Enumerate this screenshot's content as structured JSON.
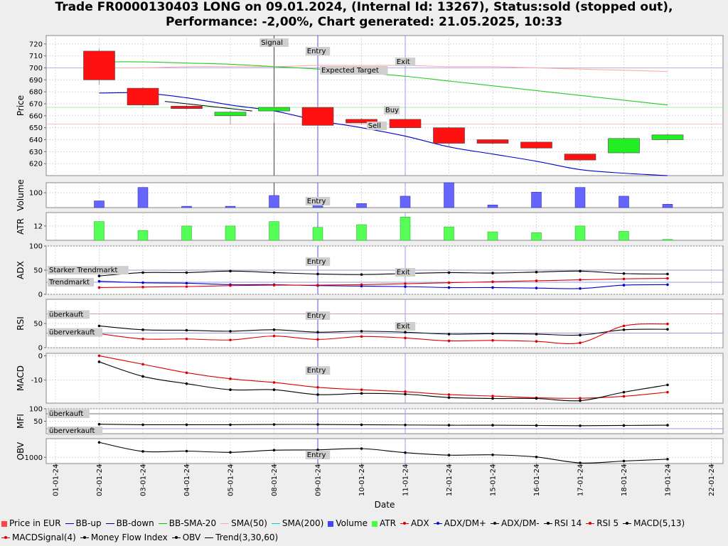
{
  "title": {
    "line1": "Trade FR0000130403 LONG on 09.01.2024, (Internal Id: 13267), Status:sold (stopped out),",
    "line2": "Performance: -2,00%, Chart generated: 21.05.2025, 10:33"
  },
  "chart_data": {
    "type": "candlestick",
    "xlabel": "Date",
    "dates": [
      "01-01-24",
      "02-01-24",
      "03-01-24",
      "04-01-24",
      "05-01-24",
      "08-01-24",
      "09-01-24",
      "10-01-24",
      "11-01-24",
      "12-01-24",
      "15-01-24",
      "16-01-24",
      "17-01-24",
      "18-01-24",
      "19-01-24",
      "22-01-24"
    ],
    "markers": {
      "signal": {
        "label": "Signal",
        "date_index": 5
      },
      "entry": {
        "label": "Entry",
        "date_index": 6
      },
      "exit": {
        "label": "Exit",
        "date_index": 8
      },
      "expected_target": {
        "label": "Expected Target",
        "value": 700
      },
      "buy": {
        "label": "Buy",
        "value": 667
      },
      "sell": {
        "label": "Sell",
        "value": 653
      }
    },
    "panels": {
      "price": {
        "ylabel": "Price",
        "ylim": [
          610,
          727
        ],
        "ticks": [
          620,
          630,
          640,
          650,
          660,
          670,
          680,
          690,
          700,
          710,
          720
        ],
        "candles": [
          {
            "i": 1,
            "open": 714,
            "close": 690,
            "high": 716,
            "low": 686
          },
          {
            "i": 2,
            "open": 683,
            "close": 669,
            "high": 684,
            "low": 667
          },
          {
            "i": 3,
            "open": 668,
            "close": 666,
            "high": 669,
            "low": 665
          },
          {
            "i": 4,
            "open": 660,
            "close": 663,
            "high": 664,
            "low": 653
          },
          {
            "i": 5,
            "open": 664,
            "close": 667,
            "high": 668,
            "low": 654
          },
          {
            "i": 6,
            "open": 667,
            "close": 652,
            "high": 668,
            "low": 651
          },
          {
            "i": 7,
            "open": 657,
            "close": 654,
            "high": 658,
            "low": 653
          },
          {
            "i": 8,
            "open": 657,
            "close": 650,
            "high": 658,
            "low": 647
          },
          {
            "i": 9,
            "open": 650,
            "close": 637,
            "high": 651,
            "low": 634
          },
          {
            "i": 10,
            "open": 640,
            "close": 637,
            "high": 640,
            "low": 636
          },
          {
            "i": 11,
            "open": 638,
            "close": 633,
            "high": 639,
            "low": 632
          },
          {
            "i": 12,
            "open": 628,
            "close": 623,
            "high": 628,
            "low": 622
          },
          {
            "i": 13,
            "open": 629,
            "close": 641,
            "high": 642,
            "low": 628
          },
          {
            "i": 14,
            "open": 640,
            "close": 644,
            "high": 645,
            "low": 637
          }
        ],
        "bb_down": [
          [
            1,
            679
          ],
          [
            2,
            679
          ],
          [
            3,
            675
          ],
          [
            4,
            669
          ],
          [
            5,
            664
          ],
          [
            6,
            656
          ],
          [
            7,
            650
          ],
          [
            8,
            643
          ],
          [
            9,
            634
          ],
          [
            10,
            628
          ],
          [
            11,
            622
          ],
          [
            12,
            615
          ],
          [
            13,
            612
          ],
          [
            14,
            610
          ]
        ],
        "bb_sma20": [
          [
            1,
            705
          ],
          [
            2,
            705
          ],
          [
            3,
            704
          ],
          [
            4,
            703
          ],
          [
            5,
            701
          ],
          [
            6,
            699
          ],
          [
            7,
            696
          ],
          [
            8,
            693
          ],
          [
            9,
            689
          ],
          [
            10,
            685
          ],
          [
            11,
            681
          ],
          [
            12,
            677
          ],
          [
            13,
            673
          ],
          [
            14,
            669
          ]
        ],
        "sma50": [
          [
            1,
            700
          ],
          [
            2,
            700
          ],
          [
            3,
            701
          ],
          [
            4,
            701
          ],
          [
            5,
            701
          ],
          [
            6,
            702
          ],
          [
            7,
            702
          ],
          [
            8,
            702
          ],
          [
            9,
            701
          ],
          [
            10,
            701
          ],
          [
            11,
            700
          ],
          [
            12,
            699
          ],
          [
            13,
            698
          ],
          [
            14,
            697
          ]
        ],
        "trend": [
          [
            2.5,
            672
          ],
          [
            4.5,
            664
          ]
        ]
      },
      "volume": {
        "ylabel": "Volume",
        "ylim": [
          78,
          115
        ],
        "ticks": [
          100
        ],
        "values": [
          [
            1,
            88
          ],
          [
            2,
            108
          ],
          [
            3,
            80
          ],
          [
            4,
            80
          ],
          [
            5,
            96
          ],
          [
            6,
            90
          ],
          [
            7,
            84
          ],
          [
            8,
            95
          ],
          [
            9,
            118
          ],
          [
            10,
            82
          ],
          [
            11,
            101
          ],
          [
            12,
            108
          ],
          [
            13,
            95
          ],
          [
            14,
            83
          ]
        ]
      },
      "atr": {
        "ylabel": "ATR",
        "ylim": [
          8.8,
          15
        ],
        "ticks": [
          12
        ],
        "values": [
          [
            1,
            13
          ],
          [
            2,
            11
          ],
          [
            3,
            12
          ],
          [
            4,
            12
          ],
          [
            5,
            13
          ],
          [
            6,
            11.7
          ],
          [
            7,
            12.3
          ],
          [
            8,
            14
          ],
          [
            9,
            11.8
          ],
          [
            10,
            10.7
          ],
          [
            11,
            10.5
          ],
          [
            12,
            12
          ],
          [
            13,
            10.8
          ],
          [
            14,
            9
          ]
        ]
      },
      "adx": {
        "ylabel": "ADX",
        "ylim": [
          0,
          100
        ],
        "ticks": [
          0,
          50,
          100
        ],
        "levels": [
          {
            "label": "Starker Trendmarkt",
            "value": 50
          },
          {
            "label": "Trendmarkt",
            "value": 25
          }
        ],
        "adx": [
          [
            1,
            14
          ],
          [
            2,
            15
          ],
          [
            3,
            16
          ],
          [
            4,
            18
          ],
          [
            5,
            19
          ],
          [
            6,
            19
          ],
          [
            7,
            20
          ],
          [
            8,
            22
          ],
          [
            9,
            24
          ],
          [
            10,
            26
          ],
          [
            11,
            28
          ],
          [
            12,
            30
          ],
          [
            13,
            32
          ],
          [
            14,
            33
          ]
        ],
        "dm_plus": [
          [
            1,
            27
          ],
          [
            2,
            24
          ],
          [
            3,
            23
          ],
          [
            4,
            20
          ],
          [
            5,
            20
          ],
          [
            6,
            18
          ],
          [
            7,
            17
          ],
          [
            8,
            16
          ],
          [
            9,
            14
          ],
          [
            10,
            14
          ],
          [
            11,
            13
          ],
          [
            12,
            12
          ],
          [
            13,
            19
          ],
          [
            14,
            20
          ]
        ],
        "dm_minus": [
          [
            1,
            38
          ],
          [
            2,
            45
          ],
          [
            3,
            45
          ],
          [
            4,
            48
          ],
          [
            5,
            45
          ],
          [
            6,
            42
          ],
          [
            7,
            41
          ],
          [
            8,
            43
          ],
          [
            9,
            45
          ],
          [
            10,
            44
          ],
          [
            11,
            46
          ],
          [
            12,
            48
          ],
          [
            13,
            43
          ],
          [
            14,
            42
          ]
        ]
      },
      "rsi": {
        "ylabel": "RSI",
        "ylim": [
          0,
          100
        ],
        "ticks": [
          0,
          50
        ],
        "levels": [
          {
            "label": "überkauft",
            "value": 70
          },
          {
            "label": "überverkauft",
            "value": 30
          }
        ],
        "rsi14": [
          [
            1,
            45
          ],
          [
            2,
            37
          ],
          [
            3,
            36
          ],
          [
            4,
            34
          ],
          [
            5,
            37
          ],
          [
            6,
            32
          ],
          [
            7,
            34
          ],
          [
            8,
            32
          ],
          [
            9,
            28
          ],
          [
            10,
            29
          ],
          [
            11,
            28
          ],
          [
            12,
            26
          ],
          [
            13,
            37
          ],
          [
            14,
            38
          ]
        ],
        "rsi5": [
          [
            1,
            29
          ],
          [
            2,
            18
          ],
          [
            3,
            18
          ],
          [
            4,
            16
          ],
          [
            5,
            24
          ],
          [
            6,
            17
          ],
          [
            7,
            23
          ],
          [
            8,
            20
          ],
          [
            9,
            14
          ],
          [
            10,
            15
          ],
          [
            11,
            13
          ],
          [
            12,
            10
          ],
          [
            13,
            45
          ],
          [
            14,
            49
          ]
        ]
      },
      "macd": {
        "ylabel": "MACD",
        "ylim": [
          -19.5,
          1
        ],
        "ticks": [
          0,
          -10
        ],
        "macd": [
          [
            1,
            -2.5
          ],
          [
            2,
            -8.5
          ],
          [
            3,
            -11.5
          ],
          [
            4,
            -14
          ],
          [
            5,
            -14
          ],
          [
            6,
            -16
          ],
          [
            7,
            -15.5
          ],
          [
            8,
            -15.8
          ],
          [
            9,
            -17.2
          ],
          [
            10,
            -17.6
          ],
          [
            11,
            -17.6
          ],
          [
            12,
            -18.5
          ],
          [
            13,
            -15
          ],
          [
            14,
            -12
          ]
        ],
        "signal": [
          [
            1,
            0
          ],
          [
            2,
            -3.5
          ],
          [
            3,
            -7
          ],
          [
            4,
            -9.5
          ],
          [
            5,
            -11
          ],
          [
            6,
            -13
          ],
          [
            7,
            -14
          ],
          [
            8,
            -14.8
          ],
          [
            9,
            -16
          ],
          [
            10,
            -16.6
          ],
          [
            11,
            -17.3
          ],
          [
            12,
            -17.5
          ],
          [
            13,
            -16.7
          ],
          [
            14,
            -15
          ]
        ]
      },
      "mfi": {
        "ylabel": "MFI",
        "ylim": [
          0,
          100
        ],
        "ticks": [
          50,
          100
        ],
        "levels": [
          {
            "label": "überkauft",
            "value": 80
          },
          {
            "label": "überverkauft",
            "value": 20
          }
        ],
        "mfi": [
          [
            1,
            38
          ],
          [
            2,
            36
          ],
          [
            3,
            36
          ],
          [
            4,
            36
          ],
          [
            5,
            37
          ],
          [
            6,
            37
          ],
          [
            7,
            36
          ],
          [
            8,
            35
          ],
          [
            9,
            34
          ],
          [
            10,
            34
          ],
          [
            11,
            33
          ],
          [
            12,
            32
          ],
          [
            13,
            33
          ],
          [
            14,
            34
          ]
        ]
      },
      "obv": {
        "ylabel": "OBV",
        "ylim": [
          -1200,
          -400
        ],
        "ticks": [
          -1000
        ],
        "obv": [
          [
            1,
            -520
          ],
          [
            2,
            -810
          ],
          [
            3,
            -800
          ],
          [
            4,
            -840
          ],
          [
            5,
            -770
          ],
          [
            6,
            -760
          ],
          [
            7,
            -720
          ],
          [
            8,
            -850
          ],
          [
            9,
            -930
          ],
          [
            10,
            -920
          ],
          [
            11,
            -990
          ],
          [
            12,
            -1180
          ],
          [
            13,
            -1120
          ],
          [
            14,
            -1060
          ]
        ]
      }
    }
  },
  "legend": [
    {
      "label": "Price in EUR",
      "color": "#ff4444",
      "kind": "box"
    },
    {
      "label": "BB-up",
      "color": "#0000cc",
      "kind": "line"
    },
    {
      "label": "BB-down",
      "color": "#000080",
      "kind": "line"
    },
    {
      "label": "BB-SMA-20",
      "color": "#00cc00",
      "kind": "line"
    },
    {
      "label": "SMA(50)",
      "color": "#ffaaaa",
      "kind": "line"
    },
    {
      "label": "SMA(200)",
      "color": "#00cccc",
      "kind": "line"
    },
    {
      "label": "Volume",
      "color": "#4444ff",
      "kind": "box"
    },
    {
      "label": "ATR",
      "color": "#44ff44",
      "kind": "box"
    },
    {
      "label": "ADX",
      "color": "#dd0000",
      "kind": "dot"
    },
    {
      "label": "ADX/DM+",
      "color": "#0000cc",
      "kind": "dot"
    },
    {
      "label": "ADX/DM-",
      "color": "#000000",
      "kind": "dot"
    },
    {
      "label": "RSI 14",
      "color": "#000000",
      "kind": "dot"
    },
    {
      "label": "RSI 5",
      "color": "#dd0000",
      "kind": "dot"
    },
    {
      "label": "MACD(5,13)",
      "color": "#000000",
      "kind": "dot"
    },
    {
      "label": "MACDSignal(4)",
      "color": "#dd0000",
      "kind": "dot"
    },
    {
      "label": "Money Flow Index",
      "color": "#000000",
      "kind": "dot"
    },
    {
      "label": "OBV",
      "color": "#000000",
      "kind": "dot"
    },
    {
      "label": "Trend(3,30,60)",
      "color": "#000000",
      "kind": "line"
    }
  ]
}
